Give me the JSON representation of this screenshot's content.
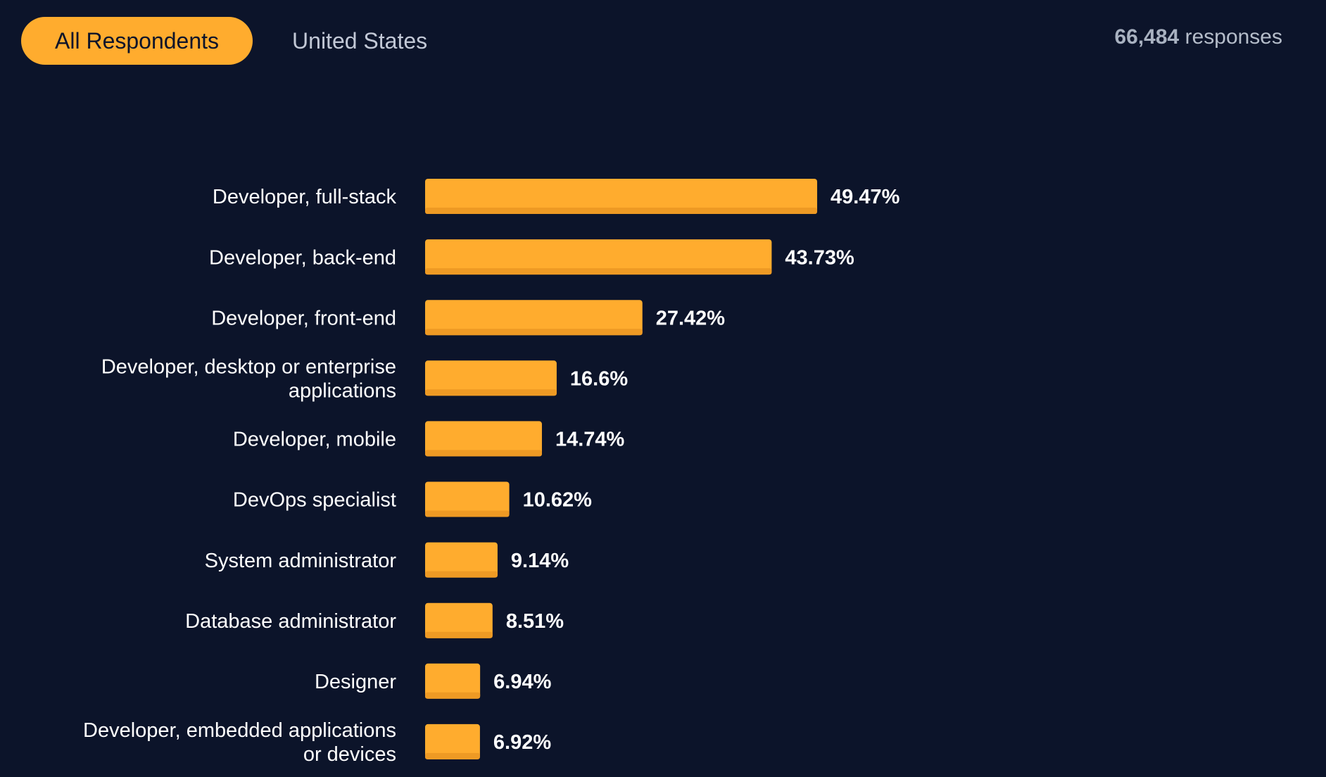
{
  "tabs": [
    {
      "label": "All Respondents",
      "active": true
    },
    {
      "label": "United States",
      "active": false
    }
  ],
  "responses": {
    "count": "66,484",
    "suffix": "responses"
  },
  "colors": {
    "background": "#0c142a",
    "bar": "#ffac2e",
    "bar_shadow": "#ee9a24",
    "text": "#ffffff"
  },
  "chart_data": {
    "type": "bar",
    "orientation": "horizontal",
    "categories": [
      [
        "Developer, full-stack"
      ],
      [
        "Developer, back-end"
      ],
      [
        "Developer, front-end"
      ],
      [
        "Developer, desktop or enterprise",
        "applications"
      ],
      [
        "Developer, mobile"
      ],
      [
        "DevOps specialist"
      ],
      [
        "System administrator"
      ],
      [
        "Database administrator"
      ],
      [
        "Designer"
      ],
      [
        "Developer, embedded applications",
        "or devices"
      ]
    ],
    "values": [
      49.47,
      43.73,
      27.42,
      16.6,
      14.74,
      10.62,
      9.14,
      8.51,
      6.94,
      6.92
    ],
    "value_labels": [
      "49.47%",
      "43.73%",
      "27.42%",
      "16.6%",
      "14.74%",
      "10.62%",
      "9.14%",
      "8.51%",
      "6.94%",
      "6.92%"
    ],
    "unit": "%",
    "grid": false,
    "legend": "none"
  }
}
